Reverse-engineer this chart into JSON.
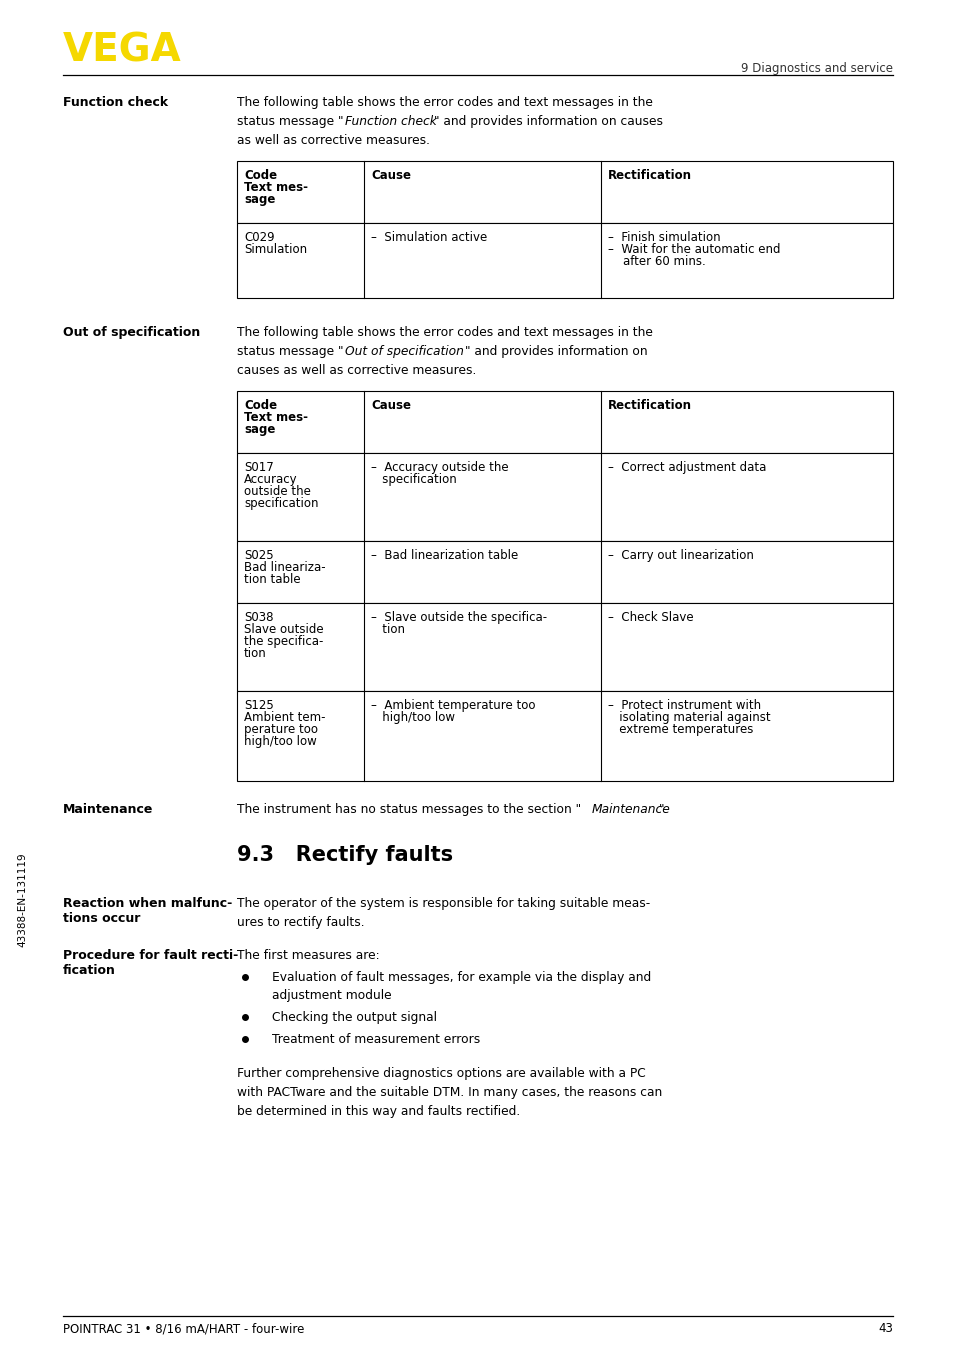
{
  "page_bg": "#ffffff",
  "vega_color": "#F5D800",
  "header_right_text": "9 Diagnostics and service",
  "footer_left_text": "POINTRAC 31 • 8/16 mA/HART - four-wire",
  "footer_right_text": "43",
  "side_text": "43388-EN-131119",
  "section1_label": "Function check",
  "section2_label": "Out of specification",
  "section3_label": "Maintenance",
  "section5_label_line1": "Reaction when malfunc-",
  "section5_label_line2": "tions occur",
  "section6_label_line1": "Procedure for fault recti-",
  "section6_label_line2": "fication",
  "section5_text_line1": "The operator of the system is responsible for taking suitable meas-",
  "section5_text_line2": "ures to rectify faults.",
  "section6_intro": "The first measures are:",
  "bullets": [
    [
      "Evaluation of fault messages, for example via the display and",
      "adjustment module"
    ],
    [
      "Checking the output signal"
    ],
    [
      "Treatment of measurement errors"
    ]
  ],
  "further_line1": "Further comprehensive diagnostics options are available with a PC",
  "further_line2": "with PACTware and the suitable DTM. In many cases, the reasons can",
  "further_line3": "be determined in this way and faults rectified.",
  "maintenance_text_pre": "The instrument has no status messages to the section \"",
  "maintenance_text_italic": "Maintenance",
  "maintenance_text_post": "\"."
}
